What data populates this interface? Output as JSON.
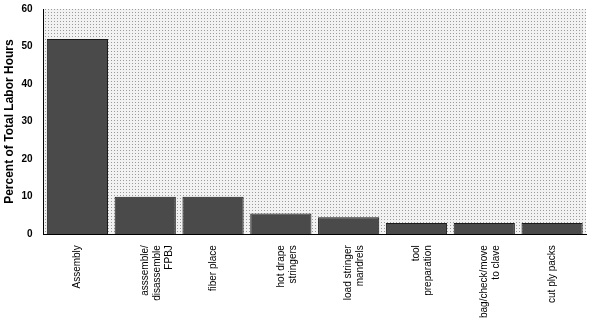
{
  "chart_data": {
    "type": "bar",
    "y_label": "Percent of Total Labor Hours",
    "categories": [
      "Assembly",
      "asssemble/ disassemble FPBJ",
      "fiber place",
      "hot drape stringers",
      "load stringer mandrels",
      "tool preparation",
      "bag/check/move to clave",
      "cut ply packs"
    ],
    "values": [
      52,
      10,
      10,
      5.5,
      4.5,
      3,
      3,
      3
    ],
    "color": "#4a4a4a",
    "ylim": [
      0,
      60
    ],
    "yticks": [
      0,
      10,
      20,
      30,
      40,
      50,
      60
    ],
    "grid": false
  }
}
